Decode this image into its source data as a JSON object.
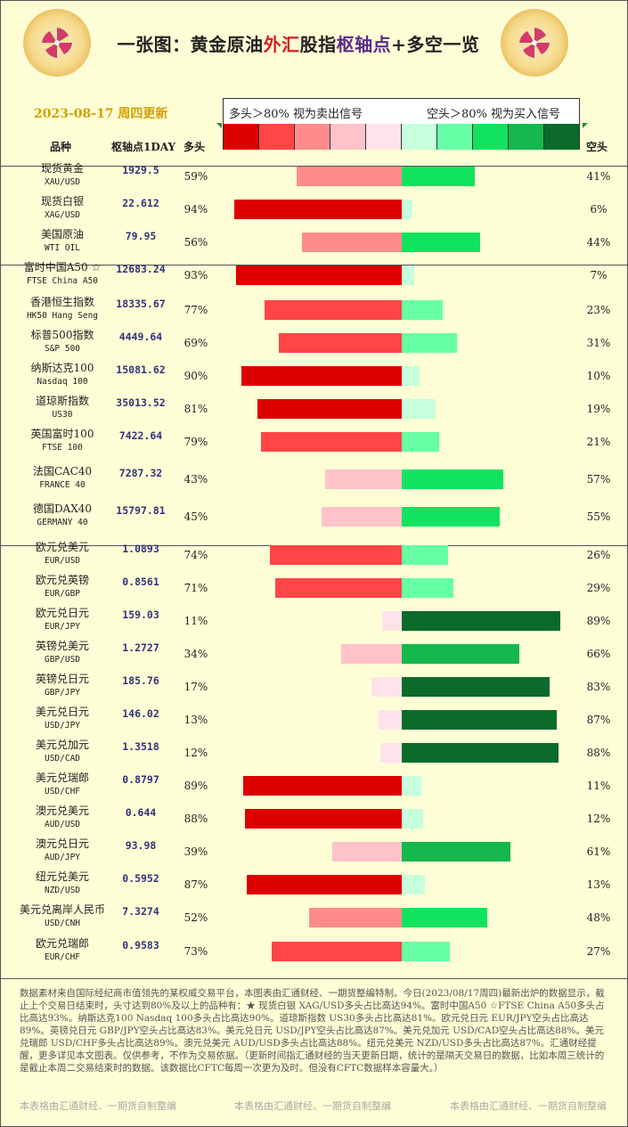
{
  "title": {
    "part1": "一张图：黄金原油",
    "part2": "外汇",
    "part3": "股指",
    "part4": "枢轴点",
    "part5": "+多空一览"
  },
  "date": "2023-08-17 周四更新",
  "legend": {
    "long_text": "多头＞80% 视为卖出信号",
    "short_text": "空头＞80% 视为买入信号"
  },
  "scale_colors": [
    "#dd0000",
    "#ff4545",
    "#ff8c8c",
    "#ffc2c8",
    "#ffe3ea",
    "#c5ffdc",
    "#66ffa6",
    "#11e35f",
    "#14b84c",
    "#0a6b2a"
  ],
  "headers": {
    "name": "品种",
    "pivot": "枢轴点1DAY",
    "long": "多头",
    "short": "空头"
  },
  "colors": {
    "background": "#fefed6",
    "date": "#d4a000",
    "pivot_text": "#33337a"
  },
  "chart_data": {
    "type": "bar",
    "categories": [
      "现货黄金 XAU/USD",
      "现货白银 XAG/USD",
      "美国原油 WTI OIL",
      "富时中国A50 ☆ FTSE China A50",
      "香港恒生指数 HK50 Hang Seng",
      "标普500指数 S&P 500",
      "纳斯达克100 Nasdaq 100",
      "道琼斯指数 US30",
      "英国富时100 FTSE 100",
      "法国CAC40 FRANCE 40",
      "德国DAX40 GERMANY 40",
      "欧元兑美元 EUR/USD",
      "欧元兑英镑 EUR/GBP",
      "欧元兑日元 EUR/JPY",
      "英镑兑美元 GBP/USD",
      "英镑兑日元 GBP/JPY",
      "美元兑日元 USD/JPY",
      "美元兑加元 USD/CAD",
      "美元兑瑞郎 USD/CHF",
      "澳元兑美元 AUD/USD",
      "澳元兑日元 AUD/JPY",
      "纽元兑美元 NZD/USD",
      "美元兑离岸人民币 USD/CNH",
      "欧元兑瑞郎 EUR/CHF"
    ],
    "series": [
      {
        "name": "多头",
        "values": [
          59,
          94,
          56,
          93,
          77,
          69,
          90,
          81,
          79,
          43,
          45,
          74,
          71,
          11,
          34,
          17,
          13,
          12,
          89,
          88,
          39,
          87,
          52,
          73
        ]
      },
      {
        "name": "空头",
        "values": [
          41,
          6,
          44,
          7,
          23,
          31,
          10,
          19,
          21,
          57,
          55,
          26,
          29,
          89,
          66,
          83,
          87,
          88,
          11,
          12,
          61,
          13,
          48,
          27
        ]
      }
    ],
    "xlim": [
      0,
      100
    ]
  },
  "rows": [
    {
      "cn": "现货黄金",
      "en": "XAU/USD",
      "pivot": "1929.5",
      "long": "59%",
      "short": "41%"
    },
    {
      "cn": "现货白银",
      "en": "XAG/USD",
      "pivot": "22.612",
      "long": "94%",
      "short": "6%"
    },
    {
      "cn": "美国原油",
      "en": "WTI OIL",
      "pivot": "79.95",
      "long": "56%",
      "short": "44%"
    },
    {
      "cn": "富时中国A50 ☆",
      "en": "FTSE China A50",
      "pivot": "12683.24",
      "long": "93%",
      "short": "7%"
    },
    {
      "cn": "香港恒生指数",
      "en": "HK50 Hang Seng",
      "pivot": "18335.67",
      "long": "77%",
      "short": "23%"
    },
    {
      "cn": "标普500指数",
      "en": "S&P 500",
      "pivot": "4449.64",
      "long": "69%",
      "short": "31%"
    },
    {
      "cn": "纳斯达克100",
      "en": "Nasdaq 100",
      "pivot": "15081.62",
      "long": "90%",
      "short": "10%"
    },
    {
      "cn": "道琼斯指数",
      "en": "US30",
      "pivot": "35013.52",
      "long": "81%",
      "short": "19%"
    },
    {
      "cn": "英国富时100",
      "en": "FTSE 100",
      "pivot": "7422.64",
      "long": "79%",
      "short": "21%"
    },
    {
      "cn": "法国CAC40",
      "en": "FRANCE 40",
      "pivot": "7287.32",
      "long": "43%",
      "short": "57%"
    },
    {
      "cn": "德国DAX40",
      "en": "GERMANY 40",
      "pivot": "15797.81",
      "long": "45%",
      "short": "55%"
    },
    {
      "cn": "欧元兑美元",
      "en": "EUR/USD",
      "pivot": "1.0893",
      "long": "74%",
      "short": "26%"
    },
    {
      "cn": "欧元兑英镑",
      "en": "EUR/GBP",
      "pivot": "0.8561",
      "long": "71%",
      "short": "29%"
    },
    {
      "cn": "欧元兑日元",
      "en": "EUR/JPY",
      "pivot": "159.03",
      "long": "11%",
      "short": "89%"
    },
    {
      "cn": "英镑兑美元",
      "en": "GBP/USD",
      "pivot": "1.2727",
      "long": "34%",
      "short": "66%"
    },
    {
      "cn": "英镑兑日元",
      "en": "GBP/JPY",
      "pivot": "185.76",
      "long": "17%",
      "short": "83%"
    },
    {
      "cn": "美元兑日元",
      "en": "USD/JPY",
      "pivot": "146.02",
      "long": "13%",
      "short": "87%"
    },
    {
      "cn": "美元兑加元",
      "en": "USD/CAD",
      "pivot": "1.3518",
      "long": "12%",
      "short": "88%"
    },
    {
      "cn": "美元兑瑞郎",
      "en": "USD/CHF",
      "pivot": "0.8797",
      "long": "89%",
      "short": "11%"
    },
    {
      "cn": "澳元兑美元",
      "en": "AUD/USD",
      "pivot": "0.644",
      "long": "88%",
      "short": "12%"
    },
    {
      "cn": "澳元兑日元",
      "en": "AUD/JPY",
      "pivot": "93.98",
      "long": "39%",
      "short": "61%"
    },
    {
      "cn": "纽元兑美元",
      "en": "NZD/USD",
      "pivot": "0.5952",
      "long": "87%",
      "short": "13%"
    },
    {
      "cn": "美元兑离岸人民币",
      "en": "USD/CNH",
      "pivot": "7.3274",
      "long": "52%",
      "short": "48%"
    },
    {
      "cn": "欧元兑瑞郎",
      "en": "EUR/CHF",
      "pivot": "0.9583",
      "long": "73%",
      "short": "27%"
    }
  ],
  "footer": "数据素材来自国际经纪商市值领先的某权威交易平台，本图表由汇通财经、一期货整编特制。今日(2023/08/17周四)最新出炉的数据显示，截止上个交易日结束时，头寸达到80%及以上的品种有：★ 现货白银 XAG/USD多头占比高达94%。富时中国A50 ☆FTSE China A50多头占比高达93%。纳斯达克100 Nasdaq 100多头占比高达90%。道琼斯指数 US30多头占比高达81%。欧元兑日元 EUR/JPY空头占比高达89%。英镑兑日元 GBP/JPY空头占比高达83%。美元兑日元 USD/JPY空头占比高达87%。美元兑加元 USD/CAD空头占比高达88%。美元兑瑞郎 USD/CHF多头占比高达89%。澳元兑美元 AUD/USD多头占比高达88%。纽元兑美元 NZD/USD多头占比高达87%。汇通财经提醒，更多详见本文图表。仅供参考，不作为交易依据。（更新时间指汇通财经的当天更新日期，统计的是隔天交易日的数据，比如本周三统计的是截止本周二交易结束时的数据。该数据比CFTC每周一次更为及时。但没有CFTC数据样本容量大。）",
  "credit": "本表格由汇通财经、一期货自制整编"
}
